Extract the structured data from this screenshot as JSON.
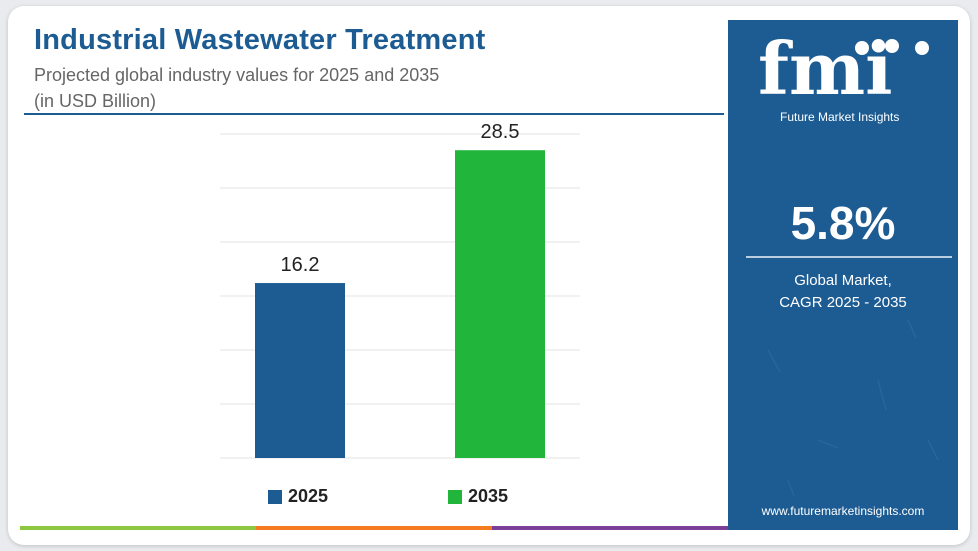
{
  "header": {
    "title": "Industrial Wastewater Treatment",
    "subtitle_line1": "Projected global industry values for 2025 and 2035",
    "subtitle_line2": "(in USD Billion)"
  },
  "chart_data": {
    "type": "bar",
    "categories": [
      "2025",
      "2035"
    ],
    "values": [
      16.2,
      28.5
    ],
    "value_labels": [
      "16.2",
      "28.5"
    ],
    "colors": [
      "#1d5c93",
      "#22b53c"
    ],
    "ylim": [
      0,
      30
    ],
    "grid": true,
    "legend": {
      "placement": "bottom",
      "entries": [
        {
          "label": "2025",
          "color": "#1d5c93"
        },
        {
          "label": "2035",
          "color": "#22b53c"
        }
      ]
    }
  },
  "panel": {
    "logo_text": "fmi",
    "brand_name": "Future Market Insights",
    "cagr_value": "5.8%",
    "cagr_label_line1": "Global Market,",
    "cagr_label_line2": "CAGR 2025 - 2035",
    "website": "www.futuremarketinsights.com",
    "background_color": "#1d5c93"
  },
  "bottom_bar_colors": [
    "#8dc63f",
    "#f47b20",
    "#7b3f98"
  ]
}
